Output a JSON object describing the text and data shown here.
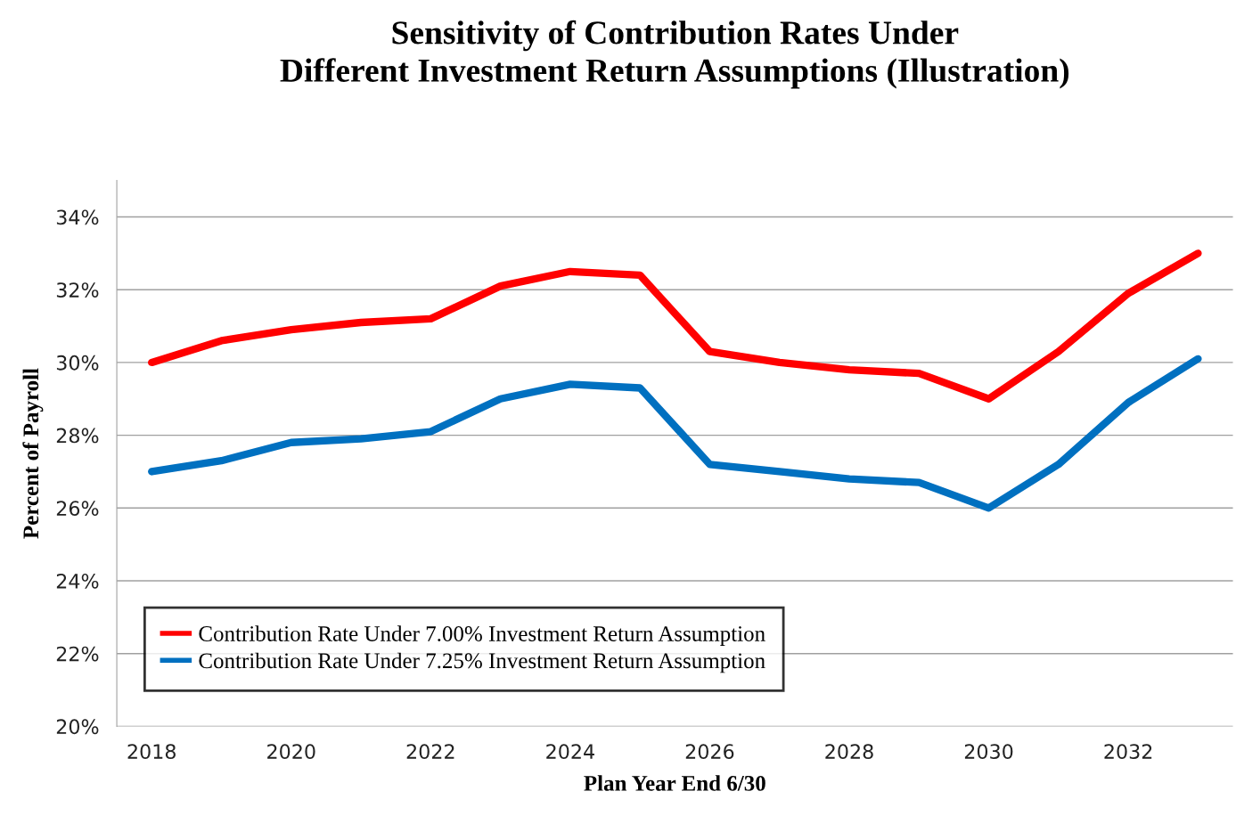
{
  "chart_data": {
    "type": "line",
    "title": "Sensitivity of Contribution Rates Under\nDifferent Investment Return Assumptions (Illustration)",
    "xlabel": "Plan Year End 6/30",
    "ylabel": "Percent of Payroll",
    "x": [
      2018,
      2019,
      2020,
      2021,
      2022,
      2023,
      2024,
      2025,
      2026,
      2027,
      2028,
      2029,
      2030,
      2031,
      2032,
      2033
    ],
    "series": [
      {
        "name": "Contribution Rate Under 7.00% Investment Return Assumption",
        "color": "#ff0000",
        "values": [
          30.0,
          30.6,
          30.9,
          31.1,
          31.2,
          32.1,
          32.5,
          32.4,
          30.3,
          30.0,
          29.8,
          29.7,
          29.0,
          30.3,
          31.9,
          33.0
        ]
      },
      {
        "name": "Contribution Rate Under 7.25% Investment Return Assumption",
        "color": "#0070c0",
        "values": [
          27.0,
          27.3,
          27.8,
          27.9,
          28.1,
          29.0,
          29.4,
          29.3,
          27.2,
          27.0,
          26.8,
          26.7,
          26.0,
          27.2,
          28.9,
          30.1
        ]
      }
    ],
    "xlim": [
      2017.5,
      2033.5
    ],
    "xticks": [
      2018,
      2020,
      2022,
      2024,
      2026,
      2028,
      2030,
      2032
    ],
    "ylim": [
      20,
      35
    ],
    "yticks": [
      {
        "value": 20,
        "label": "20%"
      },
      {
        "value": 22,
        "label": "22%"
      },
      {
        "value": 24,
        "label": "24%"
      },
      {
        "value": 26,
        "label": "26%"
      },
      {
        "value": 28,
        "label": "28%"
      },
      {
        "value": 30,
        "label": "30%"
      },
      {
        "value": 32,
        "label": "32%"
      },
      {
        "value": 34,
        "label": "34%"
      }
    ],
    "grid": "y",
    "legend": "bottom left",
    "marker": "none",
    "line_style": "solid"
  }
}
